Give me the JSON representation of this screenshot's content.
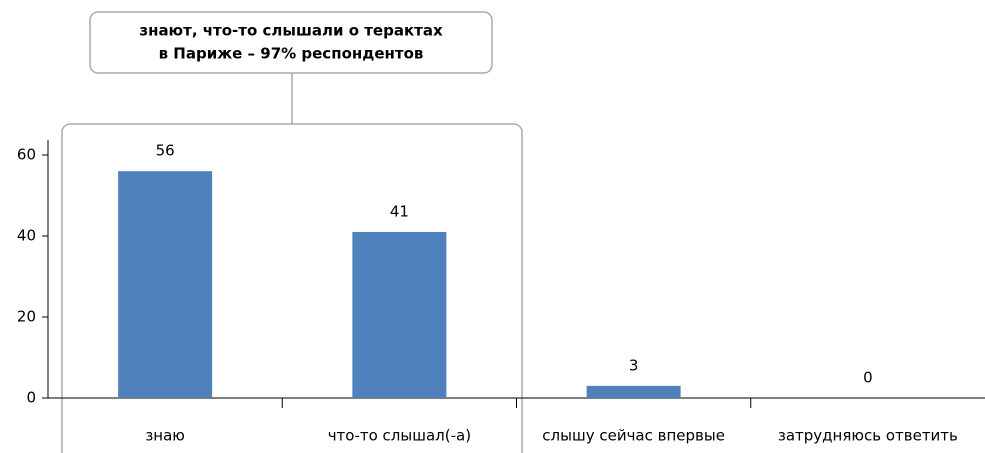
{
  "chart_data": {
    "type": "bar",
    "annotation": [
      "знают, что-то слышали о терактах",
      "в Париже – 97% респондентов"
    ],
    "categories": [
      "знаю",
      "что-то слышал(-а)",
      "слышу сейчас впервые",
      "затрудняюсь ответить"
    ],
    "values": [
      56,
      41,
      3,
      0
    ],
    "color": "#4f81bd",
    "ylim": [
      0,
      60
    ],
    "yticks": [
      0,
      20,
      40,
      60
    ],
    "grid": false
  }
}
